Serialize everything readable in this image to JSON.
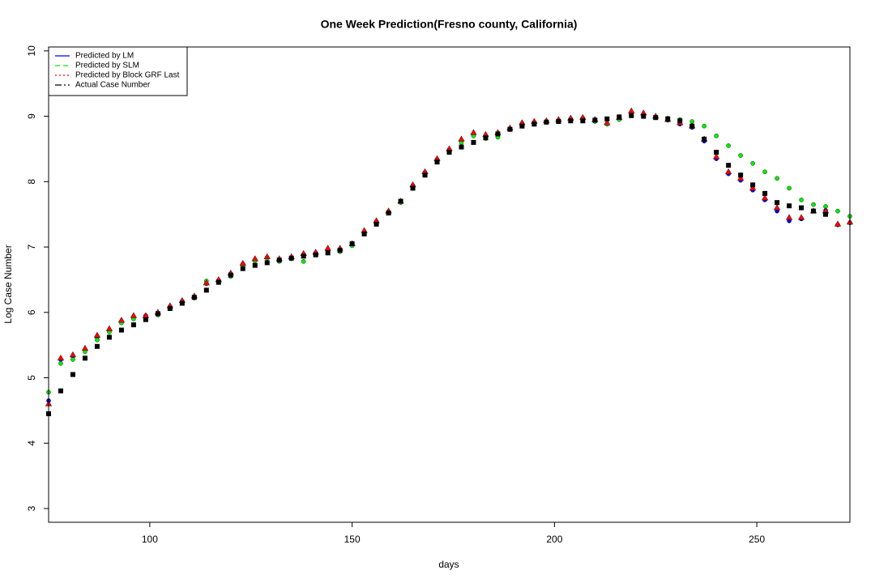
{
  "chart_data": {
    "type": "scatter",
    "title": "One Week Prediction(Fresno county, California)",
    "x_label": "days",
    "y_label": "Log Case Number",
    "x": [
      75,
      78,
      81,
      84,
      87,
      90,
      93,
      96,
      99,
      102,
      105,
      108,
      111,
      114,
      117,
      120,
      123,
      126,
      129,
      132,
      135,
      138,
      141,
      144,
      147,
      150,
      153,
      156,
      159,
      162,
      165,
      168,
      171,
      174,
      177,
      180,
      183,
      186,
      189,
      192,
      195,
      198,
      201,
      204,
      207,
      210,
      213,
      216,
      219,
      222,
      225,
      228,
      231,
      234,
      237,
      240,
      243,
      246,
      249,
      252,
      255,
      258,
      261,
      264,
      267,
      270,
      273
    ],
    "series": [
      {
        "name": "Predicted by LM",
        "color": "#0000ff",
        "marker": "circle",
        "dash": "solid",
        "values": [
          4.65,
          5.28,
          5.33,
          5.43,
          5.62,
          5.72,
          5.86,
          5.93,
          5.95,
          5.99,
          6.09,
          6.17,
          6.24,
          6.44,
          6.49,
          6.59,
          6.74,
          6.8,
          6.84,
          6.8,
          6.84,
          6.88,
          6.91,
          6.96,
          6.96,
          7.04,
          7.23,
          7.39,
          7.54,
          7.69,
          7.94,
          8.14,
          8.34,
          8.49,
          8.63,
          8.73,
          8.7,
          8.73,
          8.81,
          8.89,
          8.91,
          8.92,
          8.94,
          8.96,
          8.97,
          8.93,
          8.88,
          8.97,
          9.06,
          9.03,
          8.99,
          8.94,
          8.88,
          8.83,
          8.62,
          8.35,
          8.12,
          8.02,
          7.87,
          7.72,
          7.55,
          7.4,
          7.43,
          7.55,
          7.56,
          7.34,
          7.37
        ]
      },
      {
        "name": "Predicted by SLM",
        "color": "#00ee00",
        "marker": "circle",
        "dash": "6,4",
        "values": [
          4.78,
          5.22,
          5.28,
          5.4,
          5.58,
          5.7,
          5.84,
          5.9,
          5.93,
          5.96,
          6.06,
          6.15,
          6.22,
          6.48,
          6.47,
          6.55,
          6.72,
          6.79,
          6.83,
          6.78,
          6.82,
          6.78,
          6.9,
          6.94,
          6.93,
          7.02,
          7.22,
          7.37,
          7.52,
          7.68,
          7.92,
          8.12,
          8.32,
          8.47,
          8.6,
          8.7,
          8.66,
          8.68,
          8.8,
          8.88,
          8.9,
          8.92,
          8.93,
          8.95,
          8.96,
          8.92,
          8.88,
          8.95,
          9.05,
          9.02,
          8.98,
          8.97,
          8.95,
          8.92,
          8.85,
          8.7,
          8.55,
          8.4,
          8.28,
          8.15,
          8.05,
          7.9,
          7.72,
          7.65,
          7.62,
          7.55,
          7.47
        ]
      },
      {
        "name": "Predicted by Block GRF Last",
        "color": "#ff0000",
        "marker": "triangle",
        "dash": "2,3",
        "values": [
          4.6,
          5.3,
          5.35,
          5.45,
          5.65,
          5.75,
          5.88,
          5.95,
          5.95,
          6.0,
          6.1,
          6.18,
          6.25,
          6.45,
          6.5,
          6.6,
          6.75,
          6.82,
          6.85,
          6.82,
          6.85,
          6.9,
          6.92,
          6.98,
          6.98,
          7.05,
          7.25,
          7.4,
          7.55,
          7.7,
          7.95,
          8.15,
          8.35,
          8.5,
          8.65,
          8.75,
          8.72,
          8.75,
          8.82,
          8.9,
          8.92,
          8.93,
          8.95,
          8.97,
          8.98,
          8.95,
          8.9,
          8.98,
          9.08,
          9.05,
          9.0,
          8.95,
          8.9,
          8.85,
          8.65,
          8.38,
          8.15,
          8.05,
          7.9,
          7.75,
          7.6,
          7.45,
          7.45,
          7.55,
          7.55,
          7.35,
          7.38
        ]
      },
      {
        "name": "Actual Case Number",
        "color": "#000000",
        "marker": "square",
        "dash": "8,3,2,3",
        "values": [
          4.45,
          4.8,
          5.05,
          5.3,
          5.48,
          5.62,
          5.73,
          5.81,
          5.89,
          5.98,
          6.06,
          6.14,
          6.23,
          6.34,
          6.46,
          6.57,
          6.67,
          6.72,
          6.76,
          6.8,
          6.83,
          6.86,
          6.88,
          6.91,
          6.95,
          7.05,
          7.2,
          7.35,
          7.52,
          7.7,
          7.9,
          8.1,
          8.3,
          8.45,
          8.53,
          8.6,
          8.67,
          8.73,
          8.8,
          8.85,
          8.88,
          8.91,
          8.92,
          8.93,
          8.93,
          8.94,
          8.96,
          8.99,
          9.01,
          9.0,
          8.98,
          8.96,
          8.93,
          8.85,
          8.65,
          8.45,
          8.25,
          8.1,
          7.95,
          7.82,
          7.68,
          7.63,
          7.6,
          7.55,
          7.5,
          null,
          null
        ]
      }
    ],
    "xlim": [
      75,
      273
    ],
    "ylim": [
      2.79,
      10.06
    ],
    "xticks": [
      100,
      150,
      200,
      250
    ],
    "yticks": [
      3,
      4,
      5,
      6,
      7,
      8,
      9,
      10
    ],
    "legend": "top-left"
  }
}
